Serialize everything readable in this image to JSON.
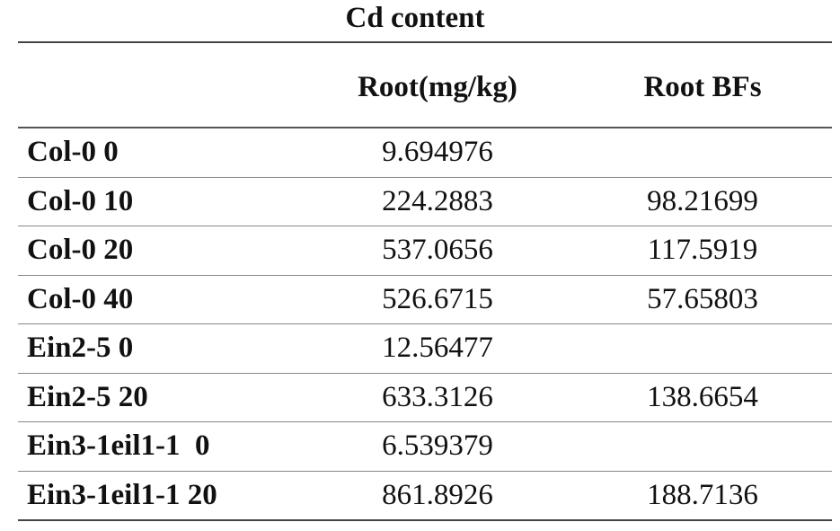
{
  "title": "Cd content",
  "table": {
    "header": [
      "Root(mg/kg)",
      "Root BFs"
    ],
    "rows": [
      [
        "Col-0 0",
        "9.694976"
      ],
      [
        "Col-0 10",
        "224.2883",
        "98.21699"
      ],
      [
        "Col-0 20",
        "537.0656",
        "117.5919"
      ],
      [
        "Col-0 40",
        "526.6715",
        "57.65803"
      ],
      [
        "Ein2-5 0",
        "12.56477"
      ],
      [
        "Ein2-5 20",
        "633.3126",
        "138.6654"
      ],
      [
        "Ein3-1eil1-1  0",
        "6.539379"
      ],
      [
        "Ein3-1eil1-1 20",
        "861.8926",
        "188.7136"
      ]
    ]
  }
}
